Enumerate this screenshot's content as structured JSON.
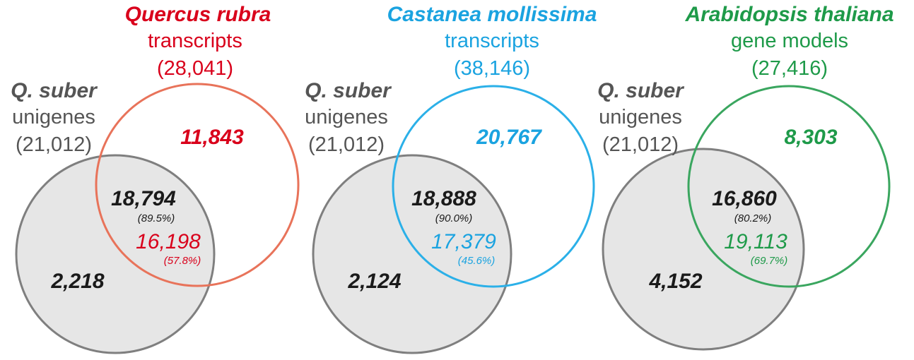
{
  "colors": {
    "qsuber": "#555555",
    "quercus": "#d9001b",
    "quercus_ring": "#e8735a",
    "castanea": "#1aa3e0",
    "castanea_ring": "#2bb0e8",
    "arabidopsis": "#1e9a49",
    "arabidopsis_ring": "#3aa65f",
    "gray_fill": "#e6e6e6",
    "gray_ring": "#7f7f7f",
    "dark": "#1a1a1a"
  },
  "panels": [
    {
      "id": "quercus-rubra",
      "species": "Quercus rubra",
      "type": "transcripts",
      "total": "(28,041)",
      "ref_species": "Q. suber",
      "ref_type": "unigenes",
      "ref_total": "(21,012)",
      "only_species": "11,843",
      "only_ref": "2,218",
      "shared_ref": "18,794",
      "shared_ref_pct": "(89.5%)",
      "shared_species": "16,198",
      "shared_species_pct": "(57.8%)"
    },
    {
      "id": "castanea-mollissima",
      "species": "Castanea mollissima",
      "type": "transcripts",
      "total": "(38,146)",
      "ref_species": "Q. suber",
      "ref_type": "unigenes",
      "ref_total": "(21,012)",
      "only_species": "20,767",
      "only_ref": "2,124",
      "shared_ref": "18,888",
      "shared_ref_pct": "(90.0%)",
      "shared_species": "17,379",
      "shared_species_pct": "(45.6%)"
    },
    {
      "id": "arabidopsis-thaliana",
      "species": "Arabidopsis thaliana",
      "type": "gene models",
      "total": "(27,416)",
      "ref_species": "Q. suber",
      "ref_type": "unigenes",
      "ref_total": "(21,012)",
      "only_species": "8,303",
      "only_ref": "4,152",
      "shared_ref": "16,860",
      "shared_ref_pct": "(80.2%)",
      "shared_species": "19,113",
      "shared_species_pct": "(69.7%)"
    }
  ]
}
